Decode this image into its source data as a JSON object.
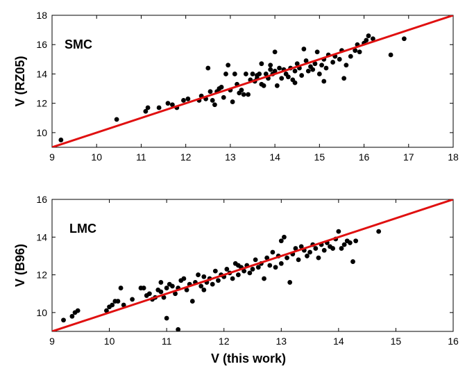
{
  "chart_data": [
    {
      "type": "scatter",
      "panel_label": "SMC",
      "xlabel": "",
      "ylabel": "V (RZ05)",
      "xlim": [
        9,
        18
      ],
      "ylim": [
        9,
        18
      ],
      "x_ticks": [
        9,
        10,
        11,
        12,
        13,
        14,
        15,
        16,
        17,
        18
      ],
      "y_ticks": [
        10,
        12,
        14,
        16,
        18
      ],
      "line": {
        "type": "one-to-one",
        "color": "#e01010",
        "points": [
          [
            9,
            9
          ],
          [
            18,
            18
          ]
        ]
      },
      "point_color": "#000000",
      "points": [
        [
          9.2,
          9.5
        ],
        [
          10.45,
          10.9
        ],
        [
          11.1,
          11.45
        ],
        [
          11.15,
          11.7
        ],
        [
          11.4,
          11.7
        ],
        [
          11.6,
          12.0
        ],
        [
          11.7,
          11.9
        ],
        [
          11.8,
          11.7
        ],
        [
          11.95,
          12.2
        ],
        [
          12.05,
          12.3
        ],
        [
          12.3,
          12.2
        ],
        [
          12.35,
          12.5
        ],
        [
          12.45,
          12.3
        ],
        [
          12.5,
          14.4
        ],
        [
          12.55,
          12.8
        ],
        [
          12.6,
          12.2
        ],
        [
          12.65,
          11.9
        ],
        [
          12.7,
          12.8
        ],
        [
          12.75,
          13.0
        ],
        [
          12.8,
          13.1
        ],
        [
          12.85,
          12.4
        ],
        [
          12.9,
          14.0
        ],
        [
          12.95,
          14.6
        ],
        [
          13.0,
          12.9
        ],
        [
          13.05,
          12.1
        ],
        [
          13.1,
          14.0
        ],
        [
          13.15,
          13.3
        ],
        [
          13.2,
          12.7
        ],
        [
          13.25,
          12.9
        ],
        [
          13.3,
          12.6
        ],
        [
          13.4,
          12.6
        ],
        [
          13.45,
          13.6
        ],
        [
          13.5,
          14.0
        ],
        [
          13.55,
          13.5
        ],
        [
          13.6,
          13.9
        ],
        [
          13.65,
          14.0
        ],
        [
          13.7,
          13.3
        ],
        [
          13.75,
          13.2
        ],
        [
          13.8,
          14.0
        ],
        [
          13.85,
          13.7
        ],
        [
          13.9,
          14.6
        ],
        [
          13.9,
          14.3
        ],
        [
          13.95,
          14.0
        ],
        [
          14.0,
          15.5
        ],
        [
          14.0,
          14.2
        ],
        [
          14.05,
          13.2
        ],
        [
          14.1,
          14.4
        ],
        [
          14.15,
          13.7
        ],
        [
          14.2,
          14.3
        ],
        [
          14.25,
          14.0
        ],
        [
          14.3,
          13.8
        ],
        [
          14.35,
          14.4
        ],
        [
          14.4,
          13.6
        ],
        [
          14.45,
          14.2
        ],
        [
          14.5,
          14.7
        ],
        [
          14.55,
          14.4
        ],
        [
          14.6,
          13.9
        ],
        [
          14.65,
          15.7
        ],
        [
          14.7,
          14.9
        ],
        [
          14.75,
          14.2
        ],
        [
          14.8,
          14.5
        ],
        [
          14.85,
          14.3
        ],
        [
          14.9,
          14.7
        ],
        [
          14.95,
          15.5
        ],
        [
          15.0,
          14.0
        ],
        [
          15.05,
          14.6
        ],
        [
          15.1,
          15.0
        ],
        [
          15.1,
          13.5
        ],
        [
          15.15,
          14.4
        ],
        [
          15.2,
          15.3
        ],
        [
          15.3,
          14.8
        ],
        [
          15.35,
          15.2
        ],
        [
          15.45,
          15.0
        ],
        [
          15.5,
          15.6
        ],
        [
          15.55,
          13.7
        ],
        [
          15.6,
          14.6
        ],
        [
          15.7,
          15.2
        ],
        [
          15.8,
          15.6
        ],
        [
          15.85,
          16.0
        ],
        [
          15.9,
          15.5
        ],
        [
          16.0,
          16.1
        ],
        [
          16.05,
          16.3
        ],
        [
          16.1,
          16.6
        ],
        [
          16.2,
          16.4
        ],
        [
          16.6,
          15.3
        ],
        [
          16.9,
          16.4
        ],
        [
          13.35,
          14.0
        ],
        [
          13.7,
          14.7
        ],
        [
          14.45,
          13.4
        ],
        [
          13.6,
          13.7
        ]
      ]
    },
    {
      "type": "scatter",
      "panel_label": "LMC",
      "xlabel": "V (this work)",
      "ylabel": "V (B96)",
      "xlim": [
        9,
        16
      ],
      "ylim": [
        9,
        16
      ],
      "x_ticks": [
        9,
        10,
        11,
        12,
        13,
        14,
        15,
        16
      ],
      "y_ticks": [
        10,
        12,
        14,
        16
      ],
      "line": {
        "type": "one-to-one",
        "color": "#e01010",
        "points": [
          [
            9,
            9
          ],
          [
            16,
            16
          ]
        ]
      },
      "point_color": "#000000",
      "points": [
        [
          9.2,
          9.6
        ],
        [
          9.35,
          9.8
        ],
        [
          9.4,
          10.0
        ],
        [
          9.45,
          10.1
        ],
        [
          9.95,
          10.1
        ],
        [
          10.0,
          10.3
        ],
        [
          10.05,
          10.4
        ],
        [
          10.1,
          10.6
        ],
        [
          10.15,
          10.6
        ],
        [
          10.2,
          11.3
        ],
        [
          10.25,
          10.4
        ],
        [
          10.4,
          10.7
        ],
        [
          10.55,
          11.3
        ],
        [
          10.6,
          11.3
        ],
        [
          10.65,
          10.9
        ],
        [
          10.7,
          11.0
        ],
        [
          10.75,
          10.7
        ],
        [
          10.8,
          10.8
        ],
        [
          10.85,
          11.2
        ],
        [
          10.9,
          11.1
        ],
        [
          10.95,
          10.8
        ],
        [
          11.0,
          9.7
        ],
        [
          11.0,
          11.3
        ],
        [
          11.05,
          11.5
        ],
        [
          11.1,
          11.4
        ],
        [
          11.15,
          11.0
        ],
        [
          11.2,
          9.1
        ],
        [
          11.2,
          11.3
        ],
        [
          11.25,
          11.7
        ],
        [
          11.3,
          11.8
        ],
        [
          11.35,
          11.2
        ],
        [
          11.4,
          11.5
        ],
        [
          11.45,
          10.6
        ],
        [
          11.5,
          11.6
        ],
        [
          11.55,
          12.0
        ],
        [
          11.6,
          11.4
        ],
        [
          11.65,
          11.9
        ],
        [
          11.7,
          11.6
        ],
        [
          11.75,
          11.8
        ],
        [
          11.8,
          11.5
        ],
        [
          11.85,
          12.2
        ],
        [
          11.9,
          11.7
        ],
        [
          11.95,
          12.0
        ],
        [
          12.0,
          11.9
        ],
        [
          12.05,
          12.3
        ],
        [
          12.1,
          12.1
        ],
        [
          12.15,
          11.8
        ],
        [
          12.2,
          12.6
        ],
        [
          12.25,
          12.0
        ],
        [
          12.3,
          12.4
        ],
        [
          12.35,
          12.2
        ],
        [
          12.4,
          12.5
        ],
        [
          12.45,
          12.1
        ],
        [
          12.5,
          12.3
        ],
        [
          12.55,
          12.8
        ],
        [
          12.6,
          12.4
        ],
        [
          12.65,
          12.6
        ],
        [
          12.7,
          11.8
        ],
        [
          12.75,
          12.9
        ],
        [
          12.8,
          12.5
        ],
        [
          12.85,
          13.2
        ],
        [
          12.9,
          12.4
        ],
        [
          12.95,
          13.0
        ],
        [
          13.0,
          12.6
        ],
        [
          13.0,
          13.8
        ],
        [
          13.05,
          14.0
        ],
        [
          13.1,
          12.9
        ],
        [
          13.15,
          11.6
        ],
        [
          13.2,
          13.1
        ],
        [
          13.25,
          13.4
        ],
        [
          13.3,
          12.8
        ],
        [
          13.35,
          13.5
        ],
        [
          13.4,
          13.3
        ],
        [
          13.45,
          13.0
        ],
        [
          13.5,
          13.2
        ],
        [
          13.55,
          13.6
        ],
        [
          13.6,
          13.4
        ],
        [
          13.65,
          12.9
        ],
        [
          13.7,
          13.6
        ],
        [
          13.75,
          13.3
        ],
        [
          13.8,
          13.7
        ],
        [
          13.85,
          13.5
        ],
        [
          13.9,
          13.4
        ],
        [
          13.95,
          13.9
        ],
        [
          14.0,
          14.3
        ],
        [
          14.05,
          13.4
        ],
        [
          14.1,
          13.6
        ],
        [
          14.15,
          13.8
        ],
        [
          14.2,
          13.7
        ],
        [
          14.25,
          12.7
        ],
        [
          14.3,
          13.8
        ],
        [
          14.7,
          14.3
        ],
        [
          10.9,
          11.6
        ],
        [
          11.65,
          11.2
        ],
        [
          12.25,
          12.5
        ]
      ]
    }
  ]
}
